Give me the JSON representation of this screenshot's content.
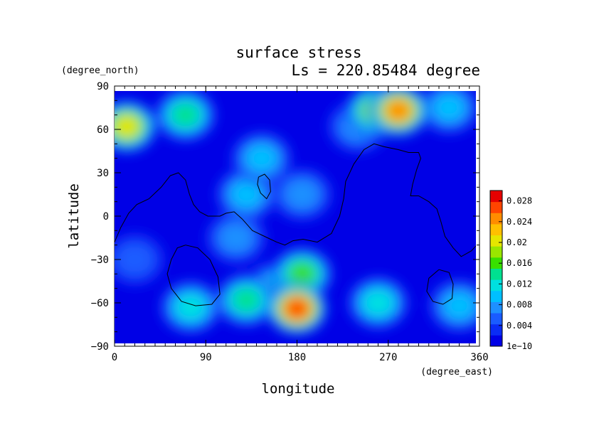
{
  "chart_data": {
    "type": "heatmap",
    "title": "surface stress",
    "subtitle": "Ls = 220.85484 degree",
    "xlabel": "longitude",
    "ylabel": "latitude",
    "x_units": "(degree_east)",
    "y_units": "(degree_north)",
    "xlim": [
      0,
      360
    ],
    "ylim": [
      -90,
      90
    ],
    "x_ticks": [
      "0",
      "90",
      "180",
      "270",
      "360"
    ],
    "y_ticks": [
      "90",
      "60",
      "30",
      "0",
      "−30",
      "−60",
      "−90"
    ],
    "colorbar": {
      "range": [
        0,
        0.03
      ],
      "tick_labels": [
        "1e−10",
        "0.004",
        "0.008",
        "0.012",
        "0.016",
        "0.02",
        "0.024",
        "0.028"
      ],
      "colors": [
        "#0000e6",
        "#0a2cf5",
        "#1a5cff",
        "#1e90ff",
        "#00bfff",
        "#00e0e0",
        "#00e090",
        "#38e000",
        "#9ae600",
        "#e6e600",
        "#ffc000",
        "#ff8c00",
        "#ff4500",
        "#e60000"
      ]
    },
    "hotspots": [
      {
        "lon": 280,
        "lat": 73,
        "value": 0.025
      },
      {
        "lon": 258,
        "lat": 73,
        "value": 0.018
      },
      {
        "lon": 12,
        "lat": 62,
        "value": 0.02
      },
      {
        "lon": 70,
        "lat": 70,
        "value": 0.013
      },
      {
        "lon": 330,
        "lat": 75,
        "value": 0.009
      },
      {
        "lon": 180,
        "lat": -64,
        "value": 0.026
      },
      {
        "lon": 185,
        "lat": -40,
        "value": 0.016
      },
      {
        "lon": 160,
        "lat": -50,
        "value": 0.012
      },
      {
        "lon": 130,
        "lat": -58,
        "value": 0.013
      },
      {
        "lon": 75,
        "lat": -63,
        "value": 0.012
      },
      {
        "lon": 260,
        "lat": -60,
        "value": 0.012
      },
      {
        "lon": 340,
        "lat": -62,
        "value": 0.009
      },
      {
        "lon": 130,
        "lat": 15,
        "value": 0.01
      },
      {
        "lon": 145,
        "lat": 40,
        "value": 0.01
      },
      {
        "lon": 120,
        "lat": -15,
        "value": 0.008
      },
      {
        "lon": 185,
        "lat": 15,
        "value": 0.007
      },
      {
        "lon": 240,
        "lat": 62,
        "value": 0.008
      },
      {
        "lon": 20,
        "lat": -30,
        "value": 0.006
      }
    ],
    "contours": [
      [
        [
          0,
          -18
        ],
        [
          6,
          -8
        ],
        [
          14,
          2
        ],
        [
          22,
          8
        ],
        [
          34,
          12
        ],
        [
          46,
          20
        ],
        [
          55,
          28
        ],
        [
          63,
          30
        ],
        [
          70,
          25
        ],
        [
          74,
          15
        ],
        [
          78,
          8
        ],
        [
          84,
          3
        ],
        [
          92,
          0
        ],
        [
          104,
          0
        ],
        [
          110,
          2
        ],
        [
          118,
          3
        ],
        [
          126,
          -2
        ],
        [
          136,
          -10
        ],
        [
          148,
          -14
        ],
        [
          160,
          -18
        ],
        [
          168,
          -20
        ],
        [
          176,
          -17
        ],
        [
          186,
          -16
        ],
        [
          200,
          -18
        ],
        [
          214,
          -12
        ],
        [
          222,
          0
        ],
        [
          226,
          12
        ],
        [
          228,
          24
        ],
        [
          236,
          36
        ],
        [
          246,
          46
        ],
        [
          256,
          50
        ],
        [
          266,
          48
        ],
        [
          280,
          46
        ],
        [
          290,
          44
        ],
        [
          300,
          44
        ],
        [
          302,
          40
        ],
        [
          298,
          32
        ],
        [
          294,
          22
        ],
        [
          292,
          14
        ],
        [
          300,
          14
        ],
        [
          310,
          10
        ],
        [
          318,
          5
        ],
        [
          322,
          -4
        ],
        [
          326,
          -14
        ],
        [
          334,
          -22
        ],
        [
          342,
          -28
        ],
        [
          352,
          -24
        ],
        [
          360,
          -18
        ]
      ],
      [
        [
          142,
          27
        ],
        [
          148,
          29
        ],
        [
          153,
          25
        ],
        [
          154,
          17
        ],
        [
          150,
          12
        ],
        [
          144,
          16
        ],
        [
          141,
          22
        ],
        [
          142,
          27
        ]
      ],
      [
        [
          70,
          -20
        ],
        [
          82,
          -22
        ],
        [
          94,
          -30
        ],
        [
          102,
          -42
        ],
        [
          104,
          -54
        ],
        [
          96,
          -61
        ],
        [
          80,
          -62
        ],
        [
          66,
          -59
        ],
        [
          56,
          -50
        ],
        [
          52,
          -40
        ],
        [
          56,
          -30
        ],
        [
          62,
          -22
        ],
        [
          70,
          -20
        ]
      ],
      [
        [
          320,
          -37
        ],
        [
          330,
          -39
        ],
        [
          334,
          -47
        ],
        [
          333,
          -57
        ],
        [
          324,
          -61
        ],
        [
          314,
          -59
        ],
        [
          308,
          -52
        ],
        [
          310,
          -43
        ],
        [
          320,
          -37
        ]
      ]
    ]
  }
}
